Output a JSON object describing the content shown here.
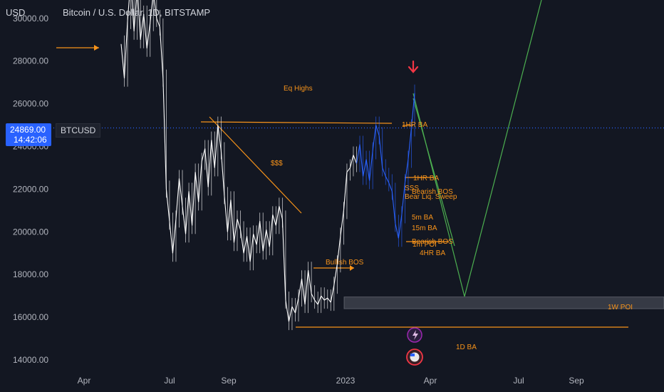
{
  "header": {
    "currency": "USD",
    "title": "Bitcoin / U.S. Dollar, 1D, BITSTAMP"
  },
  "price_tag": {
    "value": "24869.00",
    "countdown": "14:42:06",
    "ticker": "BTCUSD"
  },
  "colors": {
    "background": "#131722",
    "candle": "#ffffff",
    "candle_blue": "#2962ff",
    "orange": "#f7931a",
    "green": "#4caf50",
    "red": "#f23645",
    "zone": "#787b86"
  },
  "chart_data": {
    "type": "line",
    "title": "Bitcoin / U.S. Dollar, 1D, BITSTAMP",
    "xlabel": "",
    "ylabel": "USD",
    "x_ticks": [
      "Apr",
      "Jul",
      "Sep",
      "2023",
      "Apr",
      "Jul",
      "Sep"
    ],
    "y_ticks": [
      14000,
      16000,
      18000,
      20000,
      22000,
      24000,
      26000,
      28000,
      30000
    ],
    "y_tick_labels": [
      "14000.00",
      "16000.00",
      "18000.00",
      "20000.00",
      "22000.00",
      "24000.00",
      "26000.00",
      "28000.00",
      "30000.00"
    ],
    "ylim": [
      13500,
      31800
    ],
    "grid": false,
    "current_price": 24869,
    "series": [
      {
        "values": [
          28800,
          27200,
          29900,
          31800,
          29400,
          31500,
          29000,
          30200,
          28600,
          29800,
          31200,
          30000,
          29600,
          27200,
          22000,
          20500,
          19000,
          20600,
          22500,
          21200,
          19900,
          21900,
          20300,
          22800,
          21400,
          23300,
          23900,
          22100,
          24300,
          23000,
          25000,
          23800,
          21700,
          20000,
          21500,
          19500,
          20600,
          20100,
          19000,
          19800,
          18600,
          19900,
          19400,
          20500,
          19100,
          20100,
          19300,
          20800,
          20300,
          21200,
          20600,
          16800,
          15800,
          16500,
          16200,
          16900,
          17800,
          16600,
          18200,
          17100,
          16800,
          16600,
          17000,
          16800,
          16900,
          16700,
          17500,
          18500,
          19800,
          21000,
          22800,
          23000,
          23600,
          23200,
          24100,
          22600,
          23400,
          22400,
          23800,
          25000,
          24500,
          23000,
          22600,
          22300,
          21900,
          20400,
          19700,
          20800,
          22300,
          23400,
          24869,
          26500
        ]
      }
    ],
    "annotations": [
      {
        "text": "Eq Highs",
        "price": 25000
      },
      {
        "text": "$$$",
        "price": 23200
      },
      {
        "text": "Bullish BOS",
        "price": 18500
      },
      {
        "text": "1HR BA",
        "price": 24600
      },
      {
        "text": "1HR BA",
        "price": 22500
      },
      {
        "text": "SSS",
        "price": 22100
      },
      {
        "text": "Bearish BOS",
        "price": 21900
      },
      {
        "text": "Bear Liq. Sweep",
        "price": 21700
      },
      {
        "text": "5m BA",
        "price": 20600
      },
      {
        "text": "15m BA",
        "price": 20200
      },
      {
        "text": "Bearish BOS",
        "price": 19500
      },
      {
        "text": "1m POI",
        "price": 19400
      },
      {
        "text": "4HR BA",
        "price": 19000
      },
      {
        "text": "1W POI",
        "price": 16500
      },
      {
        "text": "1D BA",
        "price": 14600
      }
    ],
    "levels": {
      "eq_highs": 25300,
      "bottom_ba": 15500,
      "poi_zone": [
        16400,
        16950
      ],
      "projection_low": 16950
    }
  }
}
